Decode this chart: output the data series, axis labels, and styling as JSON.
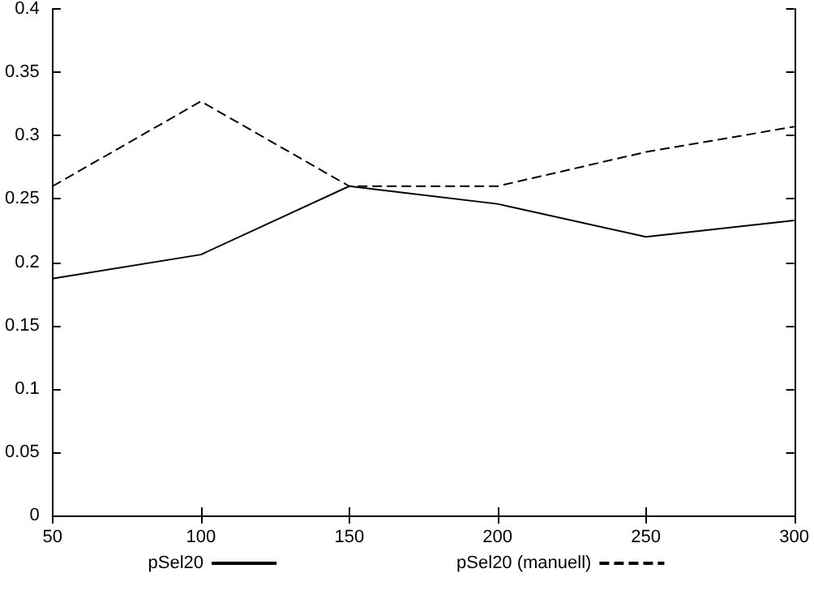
{
  "chart_data": {
    "type": "line",
    "x": [
      50,
      100,
      150,
      200,
      250,
      300
    ],
    "series": [
      {
        "name": "pSel20",
        "color": "#000000",
        "line_style": "solid",
        "values": [
          0.187,
          0.206,
          0.26,
          0.246,
          0.22,
          0.233
        ]
      },
      {
        "name": "pSel20 (manuell)",
        "color": "#000000",
        "line_style": "dashed",
        "values": [
          0.26,
          0.327,
          0.26,
          0.26,
          0.287,
          0.307
        ]
      }
    ],
    "xlim": [
      50,
      300
    ],
    "xticks": [
      50,
      100,
      150,
      200,
      250,
      300
    ],
    "ylim": [
      0,
      0.4
    ],
    "yticks": [
      0,
      0.05,
      0.1,
      0.15,
      0.2,
      0.25,
      0.3,
      0.35,
      0.4
    ],
    "grid": false,
    "legend": "bottom",
    "marker": "none"
  }
}
